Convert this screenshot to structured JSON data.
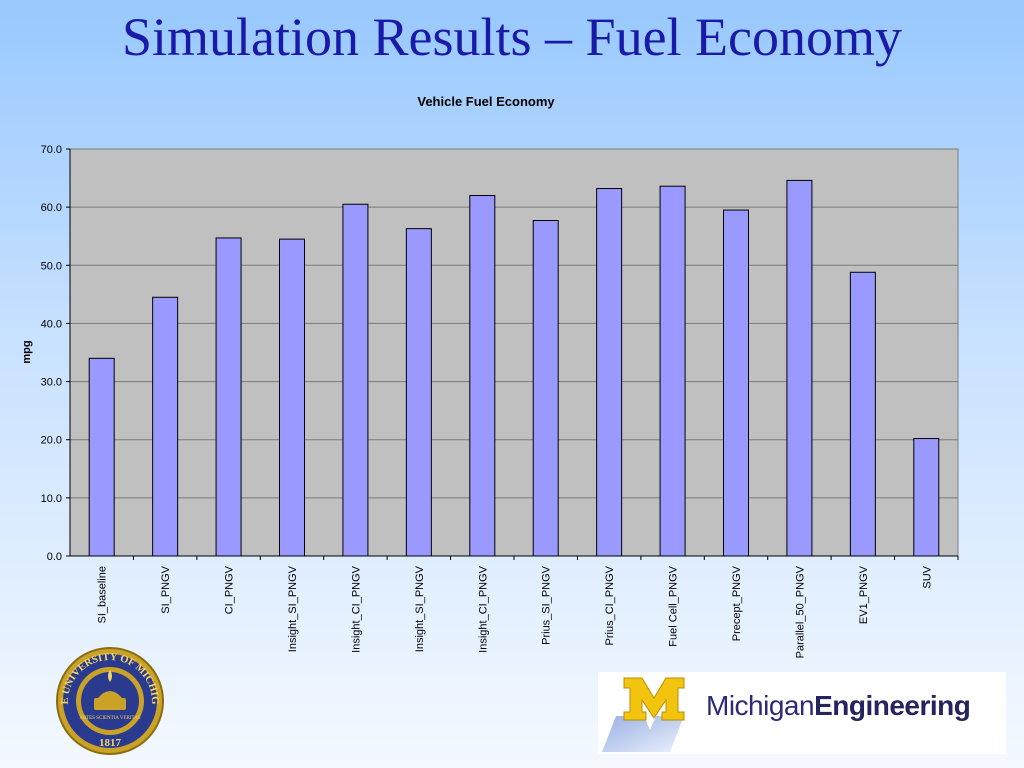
{
  "slide": {
    "title": "Simulation Results – Fuel Economy"
  },
  "chart_data": {
    "type": "bar",
    "title": "Vehicle Fuel Economy",
    "xlabel": "",
    "ylabel": "mpg",
    "ylim": [
      0,
      70
    ],
    "yticks": [
      "0.0",
      "10.0",
      "20.0",
      "30.0",
      "40.0",
      "50.0",
      "60.0",
      "70.0"
    ],
    "grid": true,
    "categories": [
      "SI_baseline",
      "SI_PNGV",
      "CI_PNGV",
      "Insight_SI_PNGV",
      "Insight_CI_PNGV",
      "Insight_SI_PNGV",
      "Insight_CI_PNGV",
      "Prius_SI_PNGV",
      "Prius_CI_PNGV",
      "Fuel Cell_PNGV",
      "Precept_PNGV",
      "Parallel_50_PNGV",
      "EV1_PNGV",
      "SUV"
    ],
    "values": [
      34.0,
      44.5,
      54.7,
      54.5,
      60.5,
      56.3,
      62.0,
      57.7,
      63.2,
      63.6,
      59.5,
      64.6,
      48.8,
      20.2
    ],
    "bar_color": "#9999ff",
    "plot_background": "#c0c0c0"
  },
  "logos": {
    "seal_text": "THE UNIVERSITY OF MICHIGAN",
    "seal_year": "1817",
    "seal_motto": "ARTES SCIENTIA VERITAS",
    "wordmark_regular": "Michigan",
    "wordmark_bold": "Engineering",
    "block_m": "M"
  }
}
